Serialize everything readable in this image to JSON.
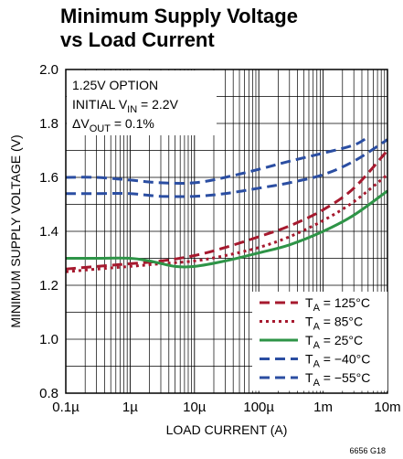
{
  "title_line1": "Minimum Supply Voltage",
  "title_line2": "vs Load Current",
  "figure_code": "6656 G18",
  "annotation": {
    "line1": "1.25V OPTION",
    "line2_prefix": "INITIAL V",
    "line2_sub": "IN",
    "line2_suffix": " = 2.2V",
    "line3_prefix": "ΔV",
    "line3_sub": "OUT",
    "line3_suffix": " = 0.1%"
  },
  "colors": {
    "red": "#a6192e",
    "green": "#2e9447",
    "blue": "#2b4ea2"
  },
  "chart_data": {
    "type": "line",
    "title": "Minimum Supply Voltage vs Load Current",
    "xlabel": "LOAD CURRENT (A)",
    "ylabel": "MINIMUM SUPPLY VOLTAGE (V)",
    "xscale": "log",
    "xlim": [
      1e-07,
      0.01
    ],
    "ylim": [
      0.8,
      2.0
    ],
    "grid": true,
    "legend_position": "bottom-right",
    "x_ticks": [
      {
        "value": 1e-07,
        "label": "0.1µ"
      },
      {
        "value": 1e-06,
        "label": "1µ"
      },
      {
        "value": 1e-05,
        "label": "10µ"
      },
      {
        "value": 0.0001,
        "label": "100µ"
      },
      {
        "value": 0.001,
        "label": "1m"
      },
      {
        "value": 0.01,
        "label": "10m"
      }
    ],
    "y_ticks": [
      {
        "value": 0.8,
        "label": "0.8"
      },
      {
        "value": 1.0,
        "label": "1.0"
      },
      {
        "value": 1.2,
        "label": "1.2"
      },
      {
        "value": 1.4,
        "label": "1.4"
      },
      {
        "value": 1.6,
        "label": "1.6"
      },
      {
        "value": 1.8,
        "label": "1.8"
      },
      {
        "value": 2.0,
        "label": "2.0"
      }
    ],
    "series": [
      {
        "name_main": "T",
        "name_sub": "A",
        "name_rest": " = 125°C",
        "color": "red",
        "style": "dash",
        "x": [
          1e-07,
          3e-07,
          1e-06,
          3e-06,
          1e-05,
          3e-05,
          0.0001,
          0.0003,
          0.001,
          0.003,
          0.01
        ],
        "y": [
          1.26,
          1.27,
          1.28,
          1.29,
          1.31,
          1.34,
          1.38,
          1.42,
          1.48,
          1.56,
          1.7
        ]
      },
      {
        "name_main": "T",
        "name_sub": "A",
        "name_rest": " = 85°C",
        "color": "red",
        "style": "dot",
        "x": [
          1e-07,
          3e-07,
          1e-06,
          3e-06,
          1e-05,
          3e-05,
          0.0001,
          0.0003,
          0.001,
          0.003,
          0.01
        ],
        "y": [
          1.25,
          1.26,
          1.27,
          1.28,
          1.29,
          1.31,
          1.34,
          1.38,
          1.44,
          1.51,
          1.61
        ]
      },
      {
        "name_main": "T",
        "name_sub": "A",
        "name_rest": " = 25°C",
        "color": "green",
        "style": "solid",
        "x": [
          1e-07,
          3e-07,
          1e-06,
          2e-06,
          5e-06,
          1e-05,
          3e-05,
          0.0001,
          0.0003,
          0.001,
          0.003,
          0.01
        ],
        "y": [
          1.3,
          1.3,
          1.3,
          1.29,
          1.27,
          1.27,
          1.29,
          1.32,
          1.35,
          1.4,
          1.46,
          1.55
        ]
      },
      {
        "name_main": "T",
        "name_sub": "A",
        "name_rest": " = −40°C",
        "color": "blue",
        "style": "dash",
        "x": [
          1e-07,
          3e-07,
          1e-06,
          3e-06,
          1e-05,
          3e-05,
          0.0001,
          0.0003,
          0.001,
          0.003,
          0.01
        ],
        "y": [
          1.54,
          1.54,
          1.54,
          1.53,
          1.53,
          1.54,
          1.56,
          1.58,
          1.61,
          1.66,
          1.74
        ]
      },
      {
        "name_main": "T",
        "name_sub": "A",
        "name_rest": " = −55°C",
        "color": "blue",
        "style": "dash",
        "x": [
          1e-07,
          3e-07,
          1e-06,
          3e-06,
          1e-05,
          3e-05,
          0.0001,
          0.0003,
          0.001,
          0.003,
          0.005
        ],
        "y": [
          1.6,
          1.6,
          1.59,
          1.58,
          1.58,
          1.6,
          1.63,
          1.66,
          1.69,
          1.72,
          1.75
        ]
      }
    ]
  }
}
